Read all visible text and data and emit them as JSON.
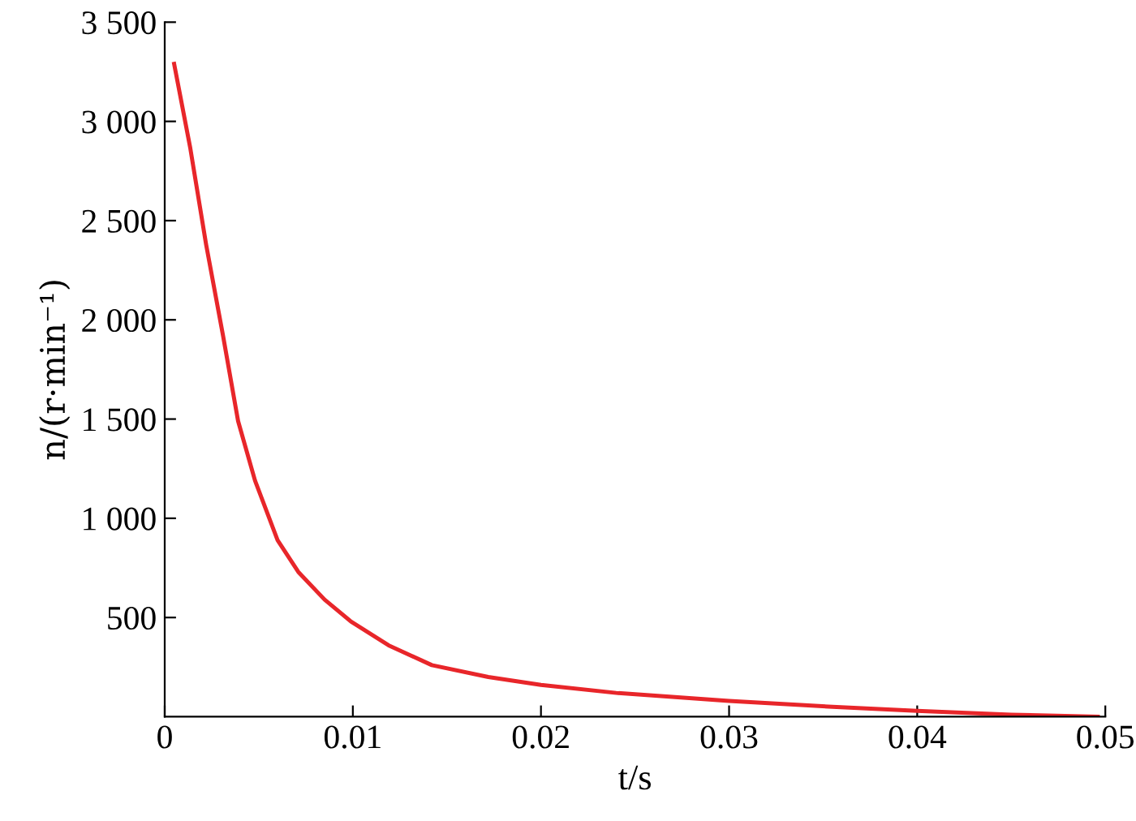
{
  "chart_data": {
    "type": "line",
    "xlabel": "t/s",
    "ylabel": "n/(r·min⁻¹)",
    "xlim": [
      0,
      0.05
    ],
    "xticks": [
      0,
      0.01,
      0.02,
      0.03,
      0.04,
      0.05
    ],
    "ylim": [
      0,
      3500
    ],
    "yticks": [
      {
        "value": 500,
        "label": "500"
      },
      {
        "value": 1000,
        "label": "1 000"
      },
      {
        "value": 1500,
        "label": "1 500"
      },
      {
        "value": 2000,
        "label": "2 000"
      },
      {
        "value": 2500,
        "label": "2 500"
      },
      {
        "value": 3000,
        "label": "3 000"
      },
      {
        "value": 3500,
        "label": "3 500"
      }
    ],
    "grid": false,
    "legend": false,
    "marker": "none",
    "line_style": "solid",
    "series": [
      {
        "color": "#e8262a",
        "x": [
          0.0005,
          0.00135,
          0.0022,
          0.0031,
          0.0039,
          0.0048,
          0.006,
          0.0071,
          0.0085,
          0.0099,
          0.0119,
          0.0142,
          0.0172,
          0.02,
          0.024,
          0.03,
          0.0355,
          0.04,
          0.045,
          0.0496
        ],
        "values": [
          3290,
          2870,
          2380,
          1920,
          1490,
          1190,
          890,
          730,
          590,
          480,
          360,
          260,
          200,
          160,
          120,
          80,
          50,
          30,
          10,
          0
        ]
      }
    ]
  }
}
